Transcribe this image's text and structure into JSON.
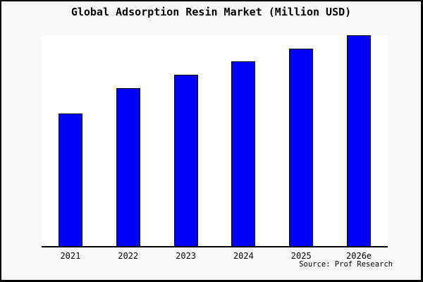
{
  "figure": {
    "title": "Global Adsorption Resin Market (Million USD)",
    "source_label": "Source: Prof Research"
  },
  "chart_data": {
    "type": "bar",
    "title": "Global Adsorption Resin Market (Million USD)",
    "categories": [
      "2021",
      "2022",
      "2023",
      "2024",
      "2025",
      "2026e"
    ],
    "values": [
      62.6,
      74.8,
      81.1,
      87.4,
      93.4,
      99.7
    ],
    "value_note": "y-axis has no tick labels or gridlines; values are relative bar heights as % of plot height (tallest bar 2026e ~= 100)",
    "xlabel": "",
    "ylabel": "",
    "ylim": [
      0,
      100
    ],
    "grid": false,
    "legend": false,
    "source": "Source: Prof Research"
  },
  "colors": {
    "figure_background": "#f8f8f8",
    "plot_background": "#ffffff",
    "bar_fill": "#0000ff",
    "bar_border": "#000000",
    "axis_line": "#000000",
    "text": "#000000",
    "frame_border": "#000000"
  }
}
